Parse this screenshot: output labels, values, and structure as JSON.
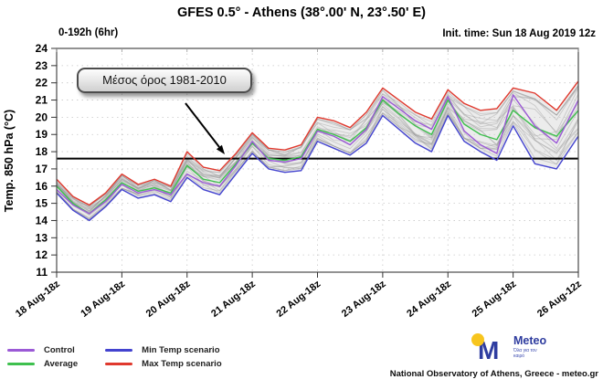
{
  "header": {
    "title": "GFES 0.5° - Athens (38°.00' N, 23°.50' E)",
    "range_label": "0-192h (6hr)",
    "init_label": "Init. time: Sun 18 Aug 2019 12z"
  },
  "annotation": {
    "text": "Μέσος όρος 1981-2010"
  },
  "legend": [
    {
      "label": "Control",
      "color": "#9b59d6"
    },
    {
      "label": "Average",
      "color": "#3ec04e"
    },
    {
      "label": "Min Temp scenario",
      "color": "#4343cf"
    },
    {
      "label": "Max Temp scenario",
      "color": "#e0392e"
    }
  ],
  "footer": {
    "logo_text": "Meteo",
    "logo_tagline": "Όλα για τον καιρό",
    "credit": "National Observatory of Athens, Greece - meteo.gr",
    "logo_blue": "#2e3da0",
    "logo_yellow": "#f7c51e"
  },
  "chart_data": {
    "type": "line",
    "title": "GFES 0.5° - Athens (38°.00' N, 23°.50' E)",
    "xlabel": "",
    "ylabel": "Temp. 850 hPa (°C)",
    "ylim": [
      11,
      24
    ],
    "grid": true,
    "legend_position": "bottom-left",
    "x_tick_labels": [
      "18 Aug-18z",
      "19 Aug-18z",
      "20 Aug-18z",
      "21 Aug-18z",
      "22 Aug-18z",
      "23 Aug-18z",
      "24 Aug-18z",
      "25 Aug-18z",
      "26 Aug-12z"
    ],
    "x_hours": [
      6,
      12,
      18,
      24,
      30,
      36,
      42,
      48,
      54,
      60,
      66,
      72,
      78,
      84,
      90,
      96,
      102,
      108,
      114,
      120,
      126,
      132,
      138,
      144,
      150,
      156,
      162,
      168,
      174,
      180,
      186,
      192
    ],
    "climatology_line": {
      "value": 17.6,
      "label": "Μέσος όρος 1981-2010",
      "color": "#000000"
    },
    "series": [
      {
        "name": "Max Temp scenario",
        "color": "#e0392e",
        "values": [
          16.4,
          15.4,
          14.9,
          15.6,
          16.7,
          16.1,
          16.4,
          16.0,
          18.0,
          17.1,
          16.9,
          17.9,
          19.1,
          18.2,
          18.1,
          18.4,
          20.0,
          19.8,
          19.4,
          20.3,
          21.7,
          21.0,
          20.3,
          19.9,
          21.6,
          20.8,
          20.4,
          20.5,
          21.7,
          21.4,
          20.4,
          22.1
        ]
      },
      {
        "name": "Average",
        "color": "#3ec04e",
        "values": [
          16.0,
          15.0,
          14.4,
          15.2,
          16.2,
          15.7,
          15.9,
          15.6,
          17.2,
          16.4,
          16.2,
          17.3,
          18.5,
          17.6,
          17.5,
          17.7,
          19.3,
          19.0,
          18.6,
          19.4,
          21.0,
          20.2,
          19.5,
          19.0,
          21.0,
          19.6,
          19.0,
          18.7,
          20.4,
          19.4,
          18.9,
          20.4
        ]
      },
      {
        "name": "Control",
        "color": "#9b59d6",
        "values": [
          15.8,
          14.9,
          14.4,
          15.1,
          16.1,
          15.6,
          15.8,
          15.5,
          16.7,
          16.2,
          16.0,
          17.2,
          18.6,
          17.5,
          17.4,
          17.6,
          19.2,
          18.9,
          18.4,
          19.3,
          21.2,
          20.5,
          19.8,
          19.3,
          21.2,
          19.2,
          18.4,
          17.9,
          21.3,
          19.5,
          18.5,
          21.0
        ]
      },
      {
        "name": "Min Temp scenario",
        "color": "#4343cf",
        "values": [
          15.6,
          14.6,
          14.0,
          14.8,
          15.8,
          15.3,
          15.5,
          15.1,
          16.5,
          15.8,
          15.5,
          16.7,
          17.9,
          17.0,
          16.8,
          16.9,
          18.6,
          18.2,
          17.8,
          18.5,
          20.1,
          19.3,
          18.5,
          18.0,
          20.1,
          18.6,
          18.0,
          17.5,
          19.5,
          17.3,
          17.0,
          18.9
        ]
      }
    ],
    "ensemble_band": {
      "fill": "#c9c9c9",
      "member_color": "#999999",
      "member_count": 18
    }
  }
}
